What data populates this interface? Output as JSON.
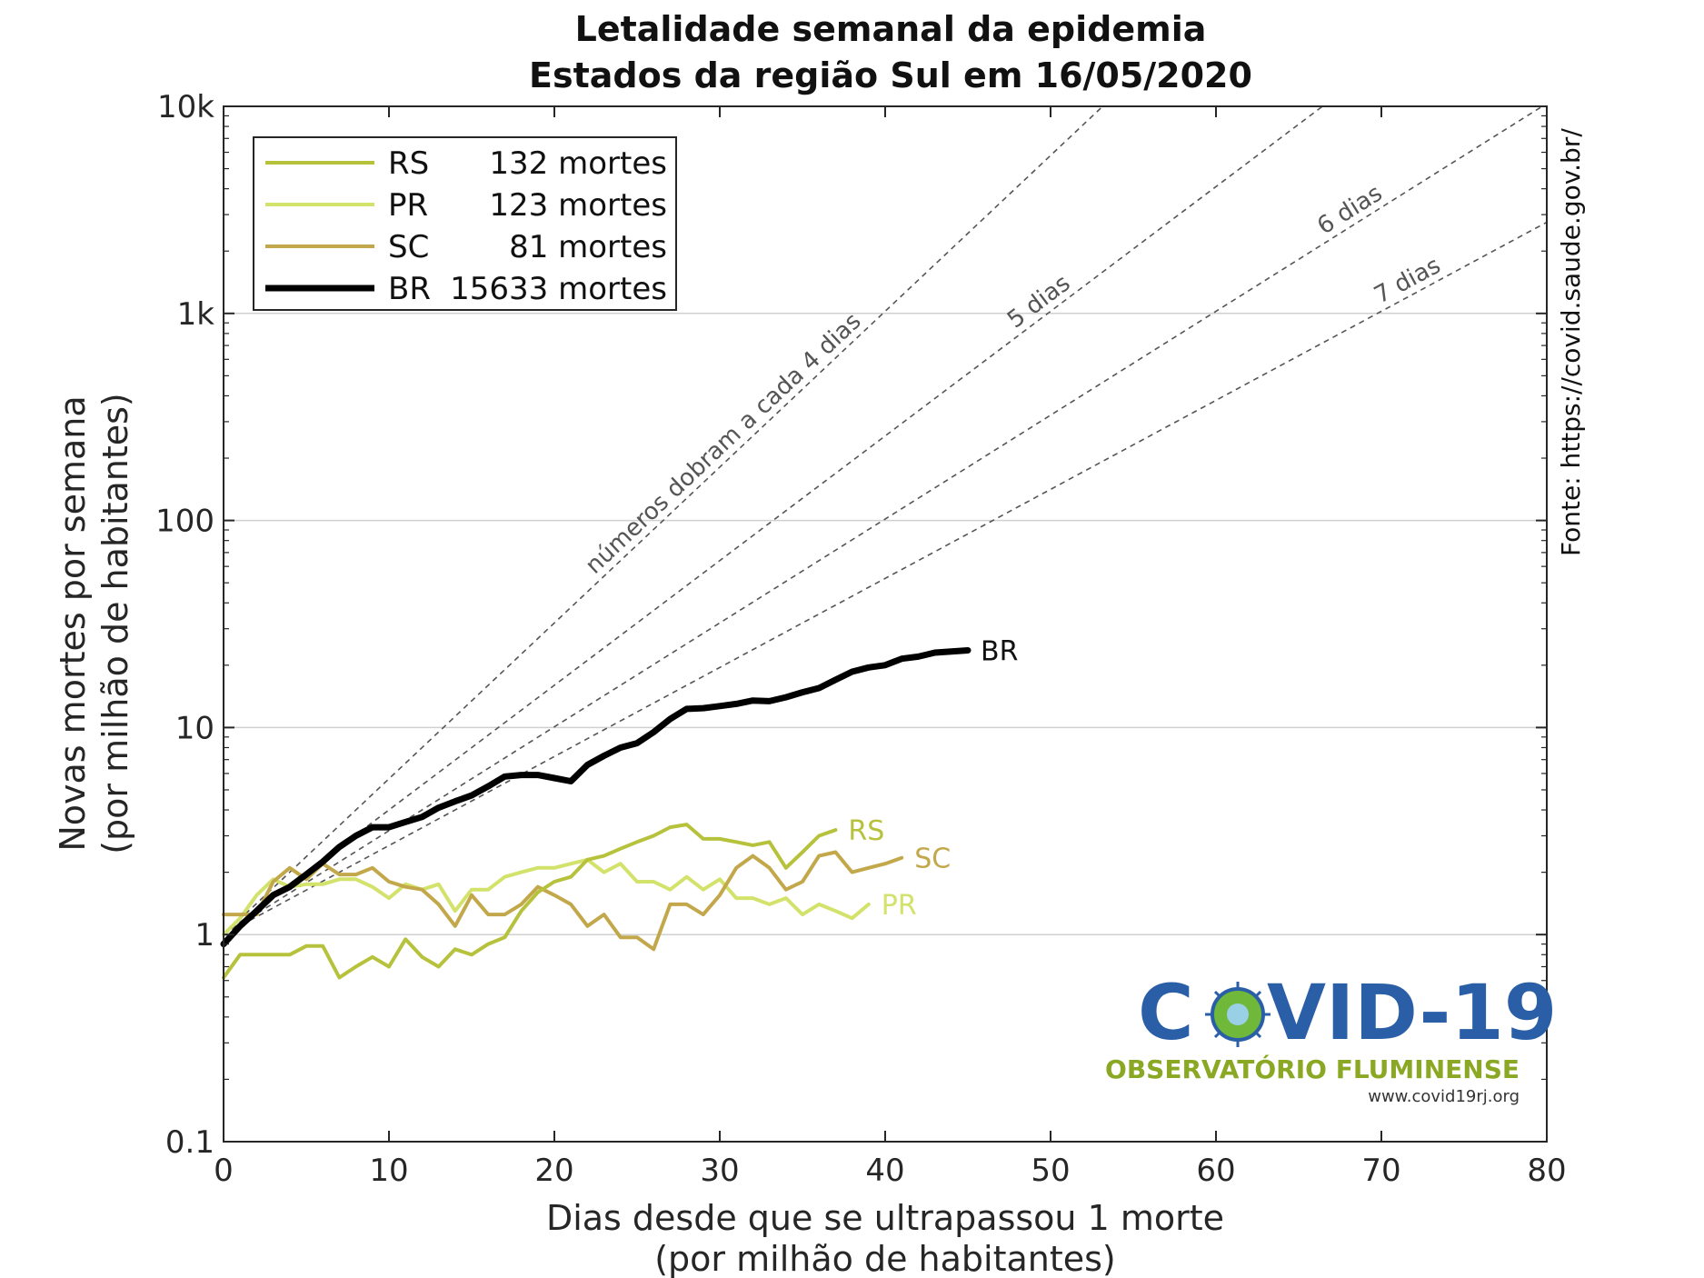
{
  "chart_data": {
    "type": "line",
    "title": "Letalidade semanal da epidemia",
    "subtitle": "Estados da região Sul em 16/05/2020",
    "xlabel_line1": "Dias desde que se ultrapassou 1 morte",
    "xlabel_line2": "(por milhão de habitantes)",
    "ylabel_line1": "Novas mortes por semana",
    "ylabel_line2": "(por milhão de habitantes)",
    "xlim": [
      0,
      80
    ],
    "ylim": [
      0.1,
      10000
    ],
    "yscale": "log",
    "grid": "horizontal",
    "legend_position": "top-left",
    "x_ticks": [
      "0",
      "10",
      "20",
      "30",
      "40",
      "50",
      "60",
      "70",
      "80"
    ],
    "y_ticks": [
      "0.1",
      "1",
      "10",
      "100",
      "1k",
      "10k"
    ],
    "source_note": "Fonte: https://covid.saude.gov.br/",
    "guides": [
      {
        "label": "números dobram a cada 4 dias",
        "doubling_days": 4
      },
      {
        "label": "5 dias",
        "doubling_days": 5
      },
      {
        "label": "6 dias",
        "doubling_days": 6
      },
      {
        "label": "7 dias",
        "doubling_days": 7
      }
    ],
    "series": [
      {
        "name": "RS",
        "deaths_label": "132 mortes",
        "color": "#b7c23c",
        "width": 4,
        "x": [
          0,
          1,
          2,
          3,
          4,
          5,
          6,
          7,
          8,
          9,
          10,
          11,
          12,
          13,
          14,
          15,
          16,
          17,
          18,
          19,
          20,
          21,
          22,
          23,
          24,
          25,
          26,
          27,
          28,
          29,
          30,
          31,
          32,
          33,
          34,
          35,
          36,
          37
        ],
        "y": [
          0.62,
          0.8,
          0.8,
          0.8,
          0.8,
          0.88,
          0.88,
          0.62,
          0.7,
          0.78,
          0.7,
          0.95,
          0.78,
          0.7,
          0.85,
          0.8,
          0.9,
          0.97,
          1.3,
          1.6,
          1.8,
          1.9,
          2.3,
          2.4,
          2.6,
          2.8,
          3.0,
          3.3,
          3.4,
          2.9,
          2.9,
          2.8,
          2.7,
          2.8,
          2.1,
          2.5,
          3.0,
          3.2
        ]
      },
      {
        "name": "PR",
        "deaths_label": "123 mortes",
        "color": "#d3e26a",
        "width": 4,
        "x": [
          0,
          1,
          2,
          3,
          4,
          5,
          6,
          7,
          8,
          9,
          10,
          11,
          12,
          13,
          14,
          15,
          16,
          17,
          18,
          19,
          20,
          21,
          22,
          23,
          24,
          25,
          26,
          27,
          28,
          29,
          30,
          31,
          32,
          33,
          34,
          35,
          36,
          37,
          38,
          39
        ],
        "y": [
          1.0,
          1.2,
          1.55,
          1.85,
          1.7,
          1.75,
          1.75,
          1.85,
          1.85,
          1.7,
          1.5,
          1.75,
          1.65,
          1.75,
          1.3,
          1.65,
          1.65,
          1.9,
          2.0,
          2.1,
          2.1,
          2.2,
          2.3,
          2.0,
          2.2,
          1.8,
          1.8,
          1.65,
          1.9,
          1.65,
          1.85,
          1.5,
          1.5,
          1.4,
          1.5,
          1.25,
          1.4,
          1.3,
          1.2,
          1.4
        ]
      },
      {
        "name": "SC",
        "deaths_label": "81 mortes",
        "color": "#c2a84a",
        "width": 4,
        "x": [
          0,
          1,
          2,
          3,
          4,
          5,
          6,
          7,
          8,
          9,
          10,
          11,
          12,
          13,
          14,
          15,
          16,
          17,
          18,
          19,
          20,
          21,
          22,
          23,
          24,
          25,
          26,
          27,
          28,
          29,
          30,
          31,
          32,
          33,
          34,
          35,
          36,
          37,
          38,
          39,
          40,
          41
        ],
        "y": [
          1.25,
          1.25,
          1.25,
          1.8,
          2.1,
          1.85,
          2.2,
          1.95,
          1.95,
          2.1,
          1.8,
          1.7,
          1.65,
          1.4,
          1.1,
          1.55,
          1.25,
          1.25,
          1.4,
          1.7,
          1.55,
          1.4,
          1.1,
          1.25,
          0.97,
          0.97,
          0.85,
          1.4,
          1.4,
          1.25,
          1.55,
          2.1,
          2.4,
          2.1,
          1.65,
          1.8,
          2.4,
          2.5,
          2.0,
          2.1,
          2.2,
          2.35
        ]
      },
      {
        "name": "BR",
        "deaths_label": "15633 mortes",
        "color": "#000000",
        "width": 7,
        "x": [
          0,
          1,
          2,
          3,
          4,
          5,
          6,
          7,
          8,
          9,
          10,
          11,
          12,
          13,
          14,
          15,
          16,
          17,
          18,
          19,
          20,
          21,
          22,
          23,
          24,
          25,
          26,
          27,
          28,
          29,
          30,
          31,
          32,
          33,
          34,
          35,
          36,
          37,
          38,
          39,
          40,
          41,
          42,
          43,
          44,
          45
        ],
        "y": [
          0.9,
          1.1,
          1.3,
          1.55,
          1.7,
          1.95,
          2.25,
          2.65,
          3.0,
          3.3,
          3.3,
          3.5,
          3.7,
          4.1,
          4.4,
          4.7,
          5.2,
          5.8,
          5.9,
          5.9,
          5.7,
          5.5,
          6.6,
          7.3,
          8.0,
          8.4,
          9.5,
          11.0,
          12.3,
          12.4,
          12.7,
          13.0,
          13.5,
          13.4,
          14.0,
          14.8,
          15.5,
          17.0,
          18.6,
          19.5,
          20.0,
          21.5,
          22.0,
          23.0,
          23.3,
          23.6
        ]
      }
    ]
  },
  "logo": {
    "title_left": "C",
    "title_right": "VID-19",
    "subtitle": "OBSERVATÓRIO FLUMINENSE",
    "url": "www.covid19rj.org"
  }
}
